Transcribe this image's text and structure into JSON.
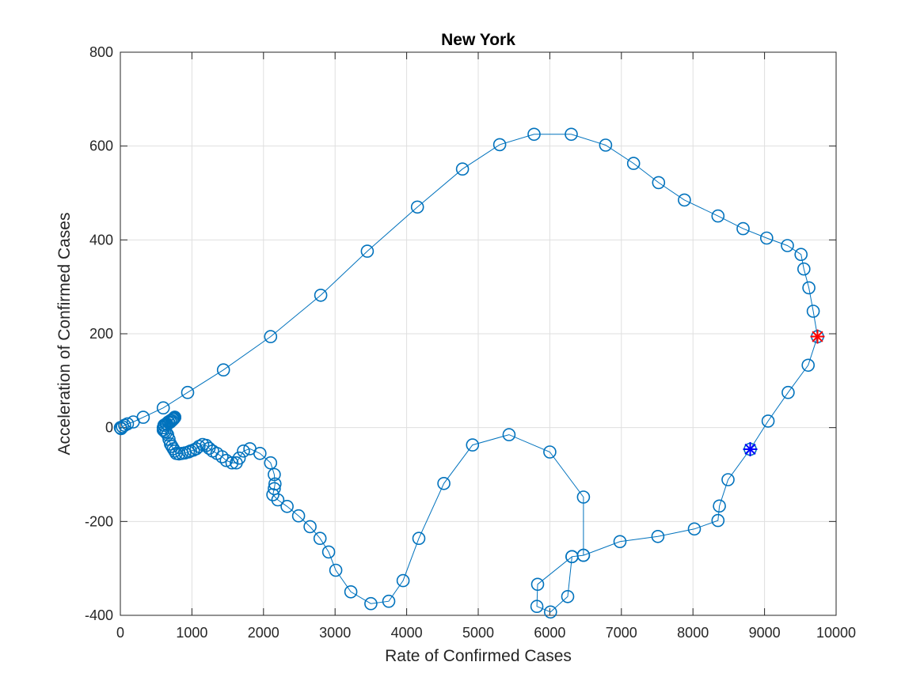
{
  "chart_data": {
    "type": "scatter",
    "title": "New York",
    "xlabel": "Rate of Confirmed Cases",
    "ylabel": "Acceleration of Confirmed Cases",
    "xlim": [
      0,
      10000
    ],
    "ylim": [
      -400,
      800
    ],
    "xticks": [
      0,
      1000,
      2000,
      3000,
      4000,
      5000,
      6000,
      7000,
      8000,
      9000,
      10000
    ],
    "yticks": [
      -400,
      -200,
      0,
      200,
      400,
      600,
      800
    ],
    "xtick_labels": [
      "0",
      "1000",
      "2000",
      "3000",
      "4000",
      "5000",
      "6000",
      "7000",
      "8000",
      "9000",
      "10000"
    ],
    "ytick_labels": [
      "-400",
      "-200",
      "0",
      "200",
      "400",
      "600",
      "800"
    ],
    "grid": true,
    "series": [
      {
        "color": "#0072BD",
        "marker": "circle",
        "line": true,
        "x": [
          0,
          10,
          30,
          60,
          100,
          180,
          320,
          600,
          940,
          1440,
          2100,
          2800,
          3450,
          4150,
          4780,
          5300,
          5780,
          6300,
          6780,
          7170,
          7520,
          7880,
          8350,
          8700,
          9030,
          9320,
          9510,
          9550,
          9620,
          9680,
          9740,
          9610,
          9330,
          9050,
          8800,
          8490,
          8370,
          8350,
          8020,
          7510,
          6980,
          6470,
          6310,
          6250,
          6010,
          5820,
          5830,
          6310,
          6470,
          6470,
          6000,
          5430,
          4920,
          4520,
          4170,
          3950,
          3750,
          3500,
          3220,
          3010,
          2910,
          2790,
          2650,
          2490,
          2330,
          2200,
          2130,
          2150,
          2160,
          2150,
          2100,
          1950,
          1810,
          1720,
          1660,
          1620,
          1560,
          1480,
          1420,
          1350,
          1290,
          1240,
          1200,
          1150,
          1100,
          1060,
          1020,
          980,
          950,
          900,
          860,
          820,
          780,
          760,
          740,
          720,
          700,
          680,
          660,
          640,
          620,
          600,
          600,
          620,
          650,
          680,
          700,
          720,
          740,
          750,
          760,
          760,
          750,
          730,
          700,
          670,
          640,
          610
        ],
        "y": [
          0,
          -2,
          2,
          5,
          8,
          12,
          22,
          42,
          75,
          123,
          194,
          282,
          376,
          470,
          551,
          603,
          625,
          625,
          602,
          563,
          522,
          485,
          451,
          424,
          404,
          388,
          369,
          338,
          298,
          248,
          194,
          133,
          75,
          14,
          -46,
          -111,
          -167,
          -198,
          -216,
          -232,
          -243,
          -272,
          -275,
          -360,
          -393,
          -381,
          -334,
          -275,
          -272,
          -148,
          -52,
          -15,
          -37,
          -119,
          -236,
          -326,
          -370,
          -375,
          -350,
          -304,
          -265,
          -236,
          -211,
          -188,
          -168,
          -154,
          -143,
          -130,
          -120,
          -100,
          -75,
          -55,
          -45,
          -50,
          -65,
          -75,
          -75,
          -70,
          -62,
          -55,
          -50,
          -44,
          -38,
          -36,
          -40,
          -45,
          -48,
          -50,
          -52,
          -54,
          -55,
          -56,
          -55,
          -50,
          -45,
          -40,
          -35,
          -25,
          -15,
          -10,
          -8,
          -5,
          0,
          5,
          8,
          10,
          12,
          15,
          18,
          20,
          22,
          22,
          20,
          18,
          15,
          12,
          8,
          5
        ]
      }
    ],
    "highlight_markers": [
      {
        "x": 9740,
        "y": 194,
        "color": "#FF0000",
        "marker": "asterisk-x"
      },
      {
        "x": 8800,
        "y": -46,
        "color": "#0000FF",
        "marker": "asterisk-x"
      }
    ]
  }
}
